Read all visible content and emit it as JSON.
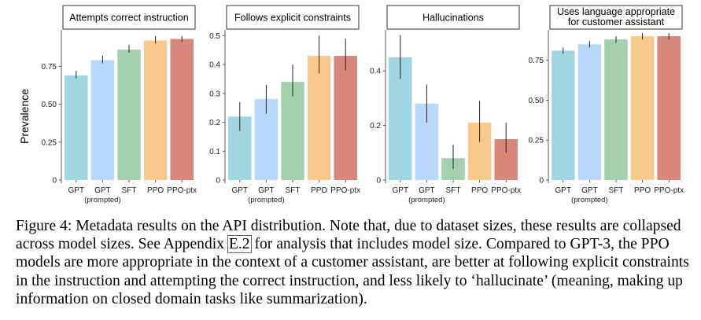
{
  "figure": {
    "ylabel": "Prevalence",
    "caption": {
      "before_ref": "Figure 4: Metadata results on the API distribution. Note that, due to dataset sizes, these results are collapsed across model sizes. See Appendix ",
      "ref": "E.2",
      "after_ref": " for analysis that includes model size. Compared to GPT-3, the PPO models are more appropriate in the context of a customer assistant, are better at following explicit constraints in the instruction and attempting the correct instruction, and less likely to ‘hallucinate’ (meaning, making up information on closed domain tasks like summarization)."
    }
  },
  "chart_data": [
    {
      "type": "bar",
      "title": "Attempts correct instruction",
      "categories": [
        "GPT",
        "GPT",
        "SFT",
        "PPO",
        "PPO-ptx"
      ],
      "category_sublabels": [
        "",
        "(prompted)",
        "",
        "",
        ""
      ],
      "values": [
        0.69,
        0.79,
        0.86,
        0.92,
        0.93
      ],
      "error_low": [
        0.67,
        0.77,
        0.84,
        0.9,
        0.91
      ],
      "error_high": [
        0.72,
        0.82,
        0.89,
        0.95,
        0.95
      ],
      "colors": [
        "#9fd6e2",
        "#b8d8fb",
        "#a3d0ad",
        "#f7c98c",
        "#d9877a"
      ],
      "ylim": [
        0,
        0.99
      ],
      "yticks": [
        0,
        0.25,
        0.5,
        0.75
      ],
      "ytick_labels": [
        "0",
        "0.25",
        "0.50",
        "0.75"
      ],
      "xlabel": "",
      "ylabel": "Prevalence"
    },
    {
      "type": "bar",
      "title": "Follows explicit constraints",
      "categories": [
        "GPT",
        "GPT",
        "SFT",
        "PPO",
        "PPO-ptx"
      ],
      "category_sublabels": [
        "",
        "(prompted)",
        "",
        "",
        ""
      ],
      "values": [
        0.22,
        0.28,
        0.34,
        0.43,
        0.43
      ],
      "error_low": [
        0.17,
        0.23,
        0.29,
        0.37,
        0.38
      ],
      "error_high": [
        0.27,
        0.33,
        0.4,
        0.5,
        0.49
      ],
      "colors": [
        "#9fd6e2",
        "#b8d8fb",
        "#a3d0ad",
        "#f7c98c",
        "#d9877a"
      ],
      "ylim": [
        0,
        0.52
      ],
      "yticks": [
        0,
        0.1,
        0.2,
        0.3,
        0.4,
        0.5
      ],
      "ytick_labels": [
        "0",
        "0.1",
        "0.2",
        "0.3",
        "0.4",
        "0.5"
      ],
      "xlabel": "",
      "ylabel": ""
    },
    {
      "type": "bar",
      "title": "Hallucinations",
      "categories": [
        "GPT",
        "GPT",
        "SFT",
        "PPO",
        "PPO-ptx"
      ],
      "category_sublabels": [
        "",
        "(prompted)",
        "",
        "",
        ""
      ],
      "values": [
        0.45,
        0.28,
        0.08,
        0.21,
        0.15
      ],
      "error_low": [
        0.37,
        0.21,
        0.04,
        0.14,
        0.1
      ],
      "error_high": [
        0.53,
        0.35,
        0.13,
        0.29,
        0.21
      ],
      "colors": [
        "#9fd6e2",
        "#b8d8fb",
        "#a3d0ad",
        "#f7c98c",
        "#d9877a"
      ],
      "ylim": [
        0,
        0.55
      ],
      "yticks": [
        0,
        0.2,
        0.4
      ],
      "ytick_labels": [
        "0",
        "0.2",
        "0.4"
      ],
      "xlabel": "",
      "ylabel": ""
    },
    {
      "type": "bar",
      "title": "Uses language appropriate for customer assistant",
      "title_lines": [
        "Uses language appropriate",
        "for customer assistant"
      ],
      "categories": [
        "GPT",
        "GPT",
        "SFT",
        "PPO",
        "PPO-ptx"
      ],
      "category_sublabels": [
        "",
        "(prompted)",
        "",
        "",
        ""
      ],
      "values": [
        0.81,
        0.85,
        0.88,
        0.9,
        0.9
      ],
      "error_low": [
        0.79,
        0.83,
        0.86,
        0.88,
        0.88
      ],
      "error_high": [
        0.83,
        0.87,
        0.9,
        0.92,
        0.92
      ],
      "colors": [
        "#9fd6e2",
        "#b8d8fb",
        "#a3d0ad",
        "#f7c98c",
        "#d9877a"
      ],
      "ylim": [
        0,
        0.94
      ],
      "yticks": [
        0,
        0.25,
        0.5,
        0.75
      ],
      "ytick_labels": [
        "0",
        "0.25",
        "0.50",
        "0.75"
      ],
      "xlabel": "",
      "ylabel": ""
    }
  ]
}
